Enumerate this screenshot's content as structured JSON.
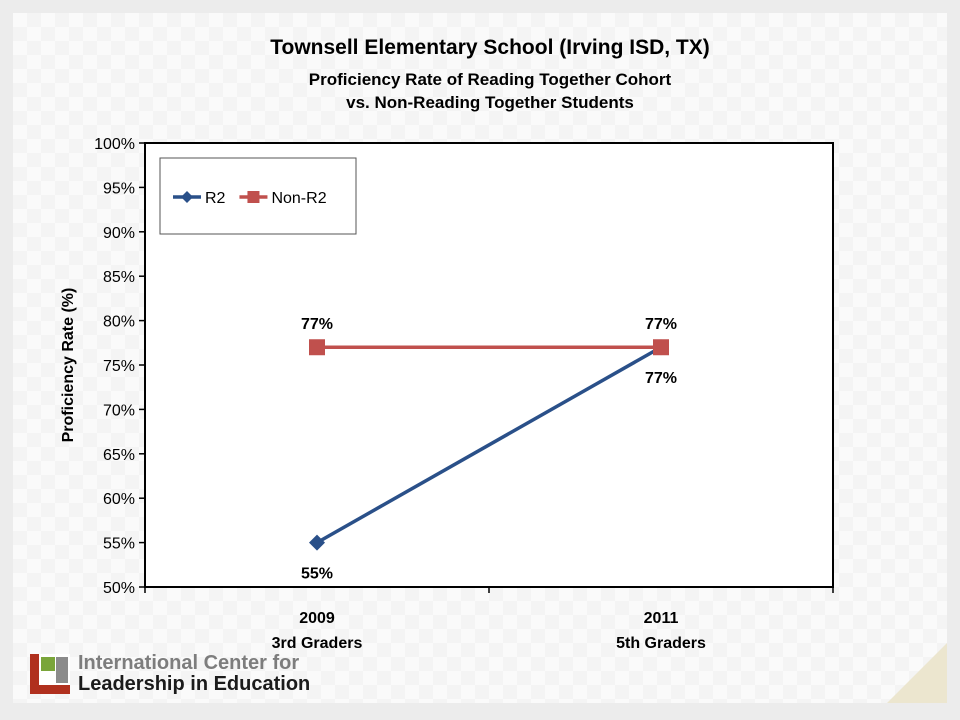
{
  "chart_data": {
    "type": "line",
    "title": "Townsell Elementary School (Irving ISD, TX)",
    "subtitle_lines": [
      "Proficiency Rate of Reading Together Cohort",
      "vs. Non-Reading Together Students"
    ],
    "xlabel": "",
    "ylabel": "Proficiency Rate (%)",
    "categories": [
      [
        "2009",
        "3rd Graders"
      ],
      [
        "2011",
        "5th Graders"
      ]
    ],
    "ylim": [
      0.5,
      1.0
    ],
    "ytick_step": 0.05,
    "ytick_labels": [
      "50%",
      "55%",
      "60%",
      "65%",
      "70%",
      "75%",
      "80%",
      "85%",
      "90%",
      "95%",
      "100%"
    ],
    "grid": false,
    "legend_position": "top-left",
    "series": [
      {
        "name": "R2",
        "values": [
          0.55,
          0.77
        ],
        "data_labels": [
          "55%",
          "77%"
        ],
        "label_positions": [
          "below",
          "below"
        ],
        "color": "#2a5089",
        "marker": "diamond"
      },
      {
        "name": "Non-R2",
        "values": [
          0.77,
          0.77
        ],
        "data_labels": [
          "77%",
          "77%"
        ],
        "label_positions": [
          "above",
          "above"
        ],
        "color": "#c0504d",
        "marker": "square"
      }
    ]
  },
  "logo": {
    "line1": "International Center for",
    "line2": "Leadership in Education"
  }
}
